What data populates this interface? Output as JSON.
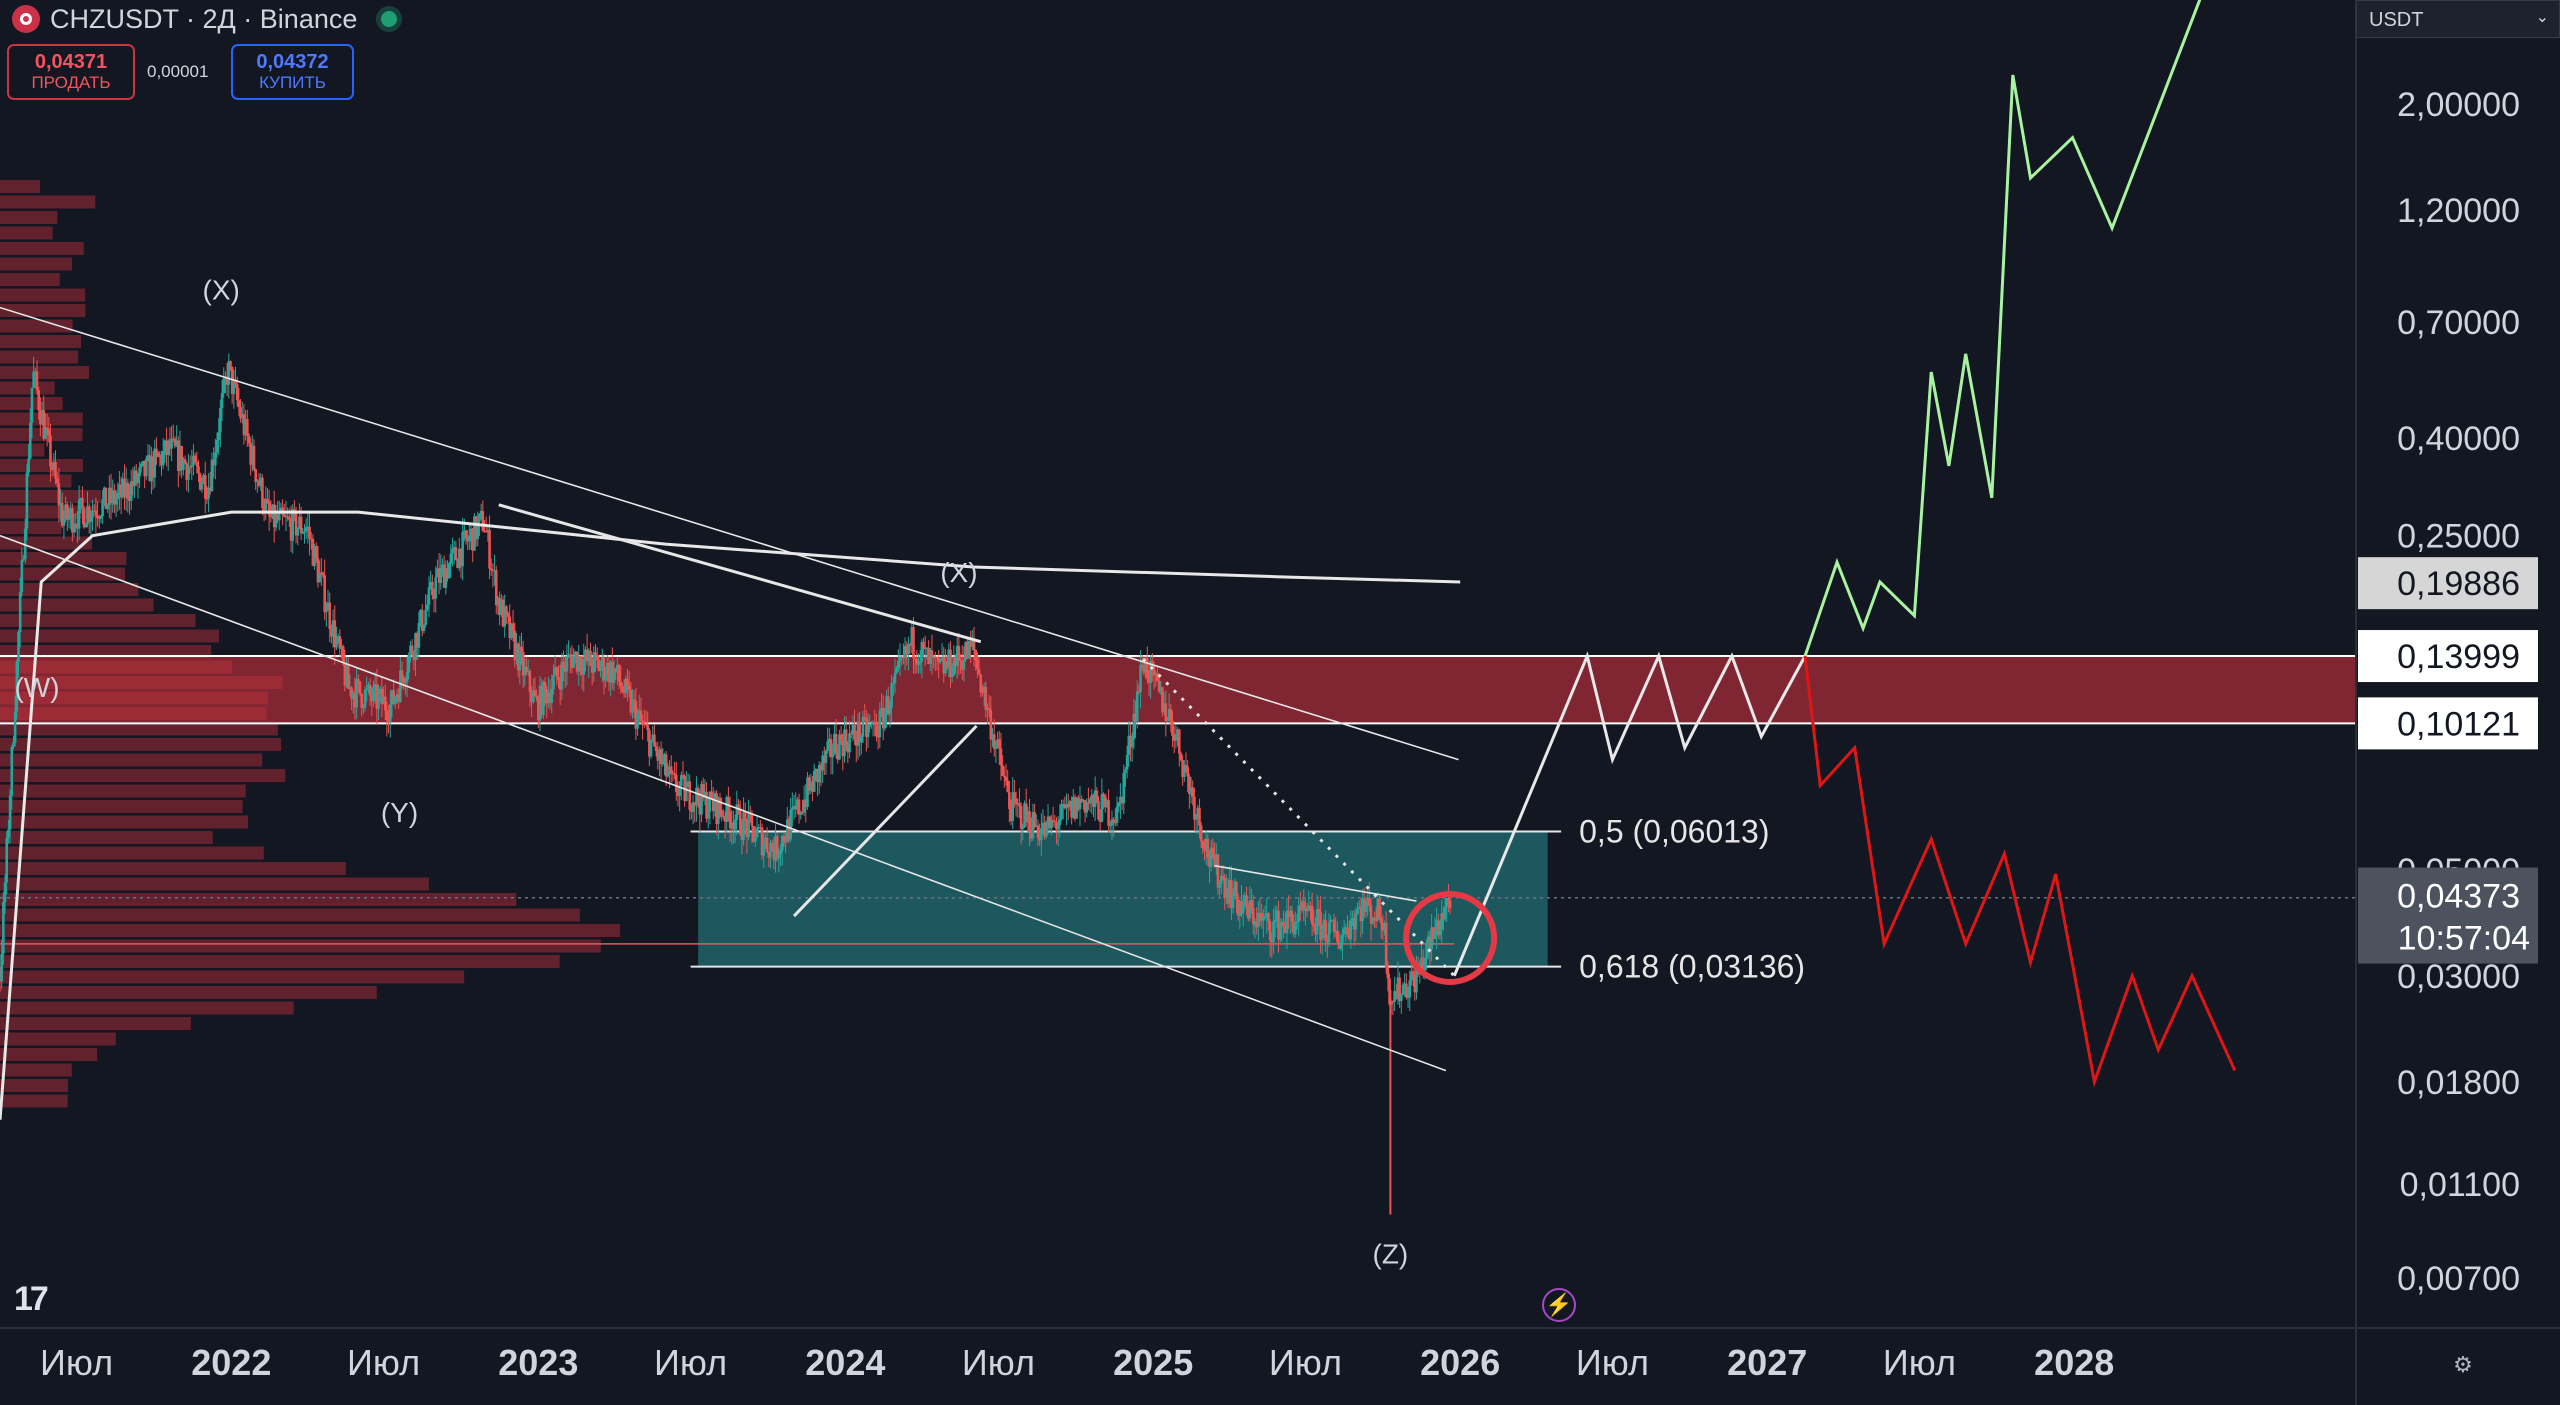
{
  "header": {
    "symbol": "CHZUSDT · 2Д · Binance",
    "sell_price": "0,04371",
    "sell_label": "ПРОДАТЬ",
    "spread": "0,00001",
    "buy_price": "0,04372",
    "buy_label": "КУПИТЬ"
  },
  "currency": "USDT",
  "colors": {
    "background": "#131722",
    "bull": "#26a69a",
    "bear": "#ef5350",
    "zone_red": "#c2303c",
    "zone_teal": "#1f6a70",
    "projection_green": "#a7f3a0",
    "projection_red": "#e01616",
    "projection_white": "#e8e8e8"
  },
  "chart_data": {
    "type": "candlestick",
    "timeframe": "2Д",
    "y_scale": "log",
    "ylim": [
      0.0055,
      3.3
    ],
    "xlim": [
      "2021-04-01",
      "2028-12-01"
    ],
    "x_ticks": [
      {
        "label": "Июл",
        "date": "2021-07-01"
      },
      {
        "label": "2022",
        "date": "2022-01-01",
        "bold": true
      },
      {
        "label": "Июл",
        "date": "2022-07-01"
      },
      {
        "label": "2023",
        "date": "2023-01-01",
        "bold": true
      },
      {
        "label": "Июл",
        "date": "2023-07-01"
      },
      {
        "label": "2024",
        "date": "2024-01-01",
        "bold": true
      },
      {
        "label": "Июл",
        "date": "2024-07-01"
      },
      {
        "label": "2025",
        "date": "2025-01-01",
        "bold": true
      },
      {
        "label": "Июл",
        "date": "2025-07-01"
      },
      {
        "label": "2026",
        "date": "2026-01-01",
        "bold": true
      },
      {
        "label": "Июл",
        "date": "2026-07-01"
      },
      {
        "label": "2027",
        "date": "2027-01-01",
        "bold": true
      },
      {
        "label": "Июл",
        "date": "2027-07-01"
      },
      {
        "label": "2028",
        "date": "2028-01-01",
        "bold": true
      }
    ],
    "y_ticks": [
      {
        "label": "2,00000",
        "value": 2.0
      },
      {
        "label": "1,20000",
        "value": 1.2
      },
      {
        "label": "0,70000",
        "value": 0.7
      },
      {
        "label": "0,40000",
        "value": 0.4
      },
      {
        "label": "0,25000",
        "value": 0.25
      },
      {
        "label": "0,05000",
        "value": 0.05
      },
      {
        "label": "0,03000",
        "value": 0.03
      },
      {
        "label": "0,01800",
        "value": 0.018
      },
      {
        "label": "0,01100",
        "value": 0.011
      },
      {
        "label": "0,00700",
        "value": 0.007
      }
    ],
    "price_labels": [
      {
        "text": "0,19886",
        "value": 0.19886,
        "style": "gray"
      },
      {
        "text": "0,13999",
        "value": 0.13999,
        "style": "white"
      },
      {
        "text": "0,10121",
        "value": 0.10121,
        "style": "white"
      }
    ],
    "last_price": {
      "text": "0,04373",
      "value": 0.04373,
      "countdown": "10:57:04"
    },
    "price_path": [
      [
        "2021-04-01",
        0.03
      ],
      [
        "2021-05-10",
        0.55
      ],
      [
        "2021-06-15",
        0.27
      ],
      [
        "2021-08-20",
        0.3
      ],
      [
        "2021-10-20",
        0.38
      ],
      [
        "2021-12-05",
        0.32
      ],
      [
        "2021-12-28",
        0.56
      ],
      [
        "2022-02-15",
        0.27
      ],
      [
        "2022-04-01",
        0.26
      ],
      [
        "2022-05-20",
        0.12
      ],
      [
        "2022-07-10",
        0.11
      ],
      [
        "2022-09-01",
        0.2
      ],
      [
        "2022-10-28",
        0.27
      ],
      [
        "2022-11-15",
        0.18
      ],
      [
        "2022-12-30",
        0.11
      ],
      [
        "2023-02-10",
        0.14
      ],
      [
        "2023-04-01",
        0.13
      ],
      [
        "2023-06-10",
        0.075
      ],
      [
        "2023-08-20",
        0.065
      ],
      [
        "2023-10-10",
        0.055
      ],
      [
        "2023-12-20",
        0.092
      ],
      [
        "2024-02-10",
        0.1
      ],
      [
        "2024-03-20",
        0.15
      ],
      [
        "2024-04-20",
        0.13
      ],
      [
        "2024-06-01",
        0.145
      ],
      [
        "2024-07-15",
        0.068
      ],
      [
        "2024-08-25",
        0.06
      ],
      [
        "2024-10-10",
        0.07
      ],
      [
        "2024-11-20",
        0.065
      ],
      [
        "2024-12-20",
        0.138
      ],
      [
        "2025-01-25",
        0.1
      ],
      [
        "2025-03-10",
        0.052
      ],
      [
        "2025-04-15",
        0.042
      ],
      [
        "2025-05-20",
        0.038
      ],
      [
        "2025-07-01",
        0.04
      ],
      [
        "2025-08-10",
        0.036
      ],
      [
        "2025-09-05",
        0.042
      ],
      [
        "2025-10-01",
        0.04
      ],
      [
        "2025-10-10",
        0.027
      ],
      [
        "2025-11-10",
        0.03
      ],
      [
        "2025-12-20",
        0.044
      ]
    ],
    "spike_wick": {
      "date": "2025-10-10",
      "low": 0.0095
    },
    "volume_profile_note": "horizontal volume histogram on left side",
    "zones": [
      {
        "name": "red-resistance-zone",
        "from": 0.10121,
        "to": 0.13999,
        "x_from": "2021-04-01",
        "x_to": "2028-12-01"
      },
      {
        "name": "teal-fib-zone",
        "from": 0.03136,
        "to": 0.06013,
        "x_from": "2023-07-10",
        "x_to": "2026-04-15"
      }
    ],
    "fib_levels": [
      {
        "label": "0,5 (0,06013)",
        "value": 0.06013
      },
      {
        "label": "0,618 (0,03136)",
        "value": 0.03136
      }
    ],
    "wave_labels": [
      {
        "text": "(X)",
        "date": "2021-12-20",
        "value": 0.78
      },
      {
        "text": "(W)",
        "date": "2021-05-15",
        "value": 0.115
      },
      {
        "text": "(Y)",
        "date": "2022-07-20",
        "value": 0.063
      },
      {
        "text": "(X)",
        "date": "2024-05-15",
        "value": 0.2
      },
      {
        "text": "(Z)",
        "date": "2025-10-10",
        "value": 0.0075
      }
    ],
    "projections": {
      "white": [
        [
          "2025-12-25",
          0.03
        ],
        [
          "2026-06-01",
          0.14
        ],
        [
          "2026-07-01",
          0.085
        ],
        [
          "2026-08-25",
          0.14
        ],
        [
          "2026-09-25",
          0.09
        ],
        [
          "2026-11-20",
          0.14
        ],
        [
          "2026-12-25",
          0.095
        ],
        [
          "2027-02-15",
          0.14
        ]
      ],
      "green": [
        [
          "2027-02-15",
          0.14
        ],
        [
          "2027-03-25",
          0.22
        ],
        [
          "2027-04-25",
          0.16
        ],
        [
          "2027-05-15",
          0.2
        ],
        [
          "2027-06-25",
          0.17
        ],
        [
          "2027-07-15",
          0.55
        ],
        [
          "2027-08-05",
          0.35
        ],
        [
          "2027-08-25",
          0.6
        ],
        [
          "2027-09-25",
          0.3
        ],
        [
          "2027-10-20",
          2.3
        ],
        [
          "2027-11-10",
          1.4
        ],
        [
          "2027-12-30",
          1.7
        ],
        [
          "2028-02-15",
          1.1
        ],
        [
          "2028-06-01",
          3.4
        ]
      ],
      "red": [
        [
          "2027-02-15",
          0.14
        ],
        [
          "2027-03-05",
          0.075
        ],
        [
          "2027-04-15",
          0.09
        ],
        [
          "2027-05-20",
          0.035
        ],
        [
          "2027-07-15",
          0.058
        ],
        [
          "2027-08-25",
          0.035
        ],
        [
          "2027-10-10",
          0.054
        ],
        [
          "2027-11-10",
          0.032
        ],
        [
          "2027-12-10",
          0.049
        ],
        [
          "2028-01-25",
          0.018
        ],
        [
          "2028-03-10",
          0.03
        ],
        [
          "2028-04-10",
          0.021
        ],
        [
          "2028-05-20",
          0.03
        ],
        [
          "2028-07-10",
          0.019
        ]
      ]
    },
    "trendlines": [
      {
        "from": [
          "2021-04-01",
          0.75
        ],
        "to": [
          "2025-12-30",
          0.085
        ],
        "style": "solid"
      },
      {
        "from": [
          "2021-04-01",
          0.25
        ],
        "to": [
          "2025-12-15",
          0.019
        ],
        "style": "solid"
      },
      {
        "from": [
          "2022-11-15",
          0.29
        ],
        "to": [
          "2024-06-10",
          0.15
        ],
        "style": "solid-bold"
      },
      {
        "from": [
          "2023-11-01",
          0.04
        ],
        "to": [
          "2024-06-05",
          0.1
        ],
        "style": "solid-bold"
      },
      {
        "from": [
          "2024-12-20",
          0.138
        ],
        "to": [
          "2025-12-25",
          0.03
        ],
        "style": "dotted"
      },
      {
        "from": [
          "2025-03-15",
          0.051
        ],
        "to": [
          "2025-11-10",
          0.043
        ],
        "style": "solid"
      }
    ],
    "vwap_line": [
      [
        "2021-04-01",
        0.015
      ],
      [
        "2021-05-20",
        0.2
      ],
      [
        "2021-07-20",
        0.25
      ],
      [
        "2022-01-01",
        0.28
      ],
      [
        "2022-06-01",
        0.28
      ],
      [
        "2023-06-01",
        0.24
      ],
      [
        "2024-06-01",
        0.215
      ],
      [
        "2025-06-01",
        0.205
      ],
      [
        "2026-01-01",
        0.2
      ]
    ],
    "red_horizontal": 0.035,
    "gray_dashed": 0.0437,
    "circle_marker": {
      "date": "2025-12-20",
      "value": 0.036
    }
  }
}
